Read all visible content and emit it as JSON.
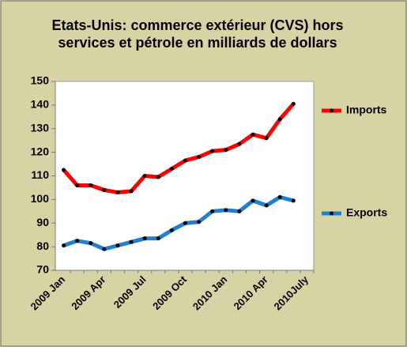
{
  "chart_data": {
    "type": "line",
    "title": [
      "Etats-Unis: commerce extérieur (CVS) hors",
      "services et pétrole en milliards de dollars"
    ],
    "categories": [
      "2009 Jan",
      null,
      null,
      "2009 Apr",
      null,
      null,
      "2009 Jul",
      null,
      null,
      "2009 Oct",
      null,
      null,
      "2010 Jan",
      null,
      null,
      "2010 Apr",
      null,
      null,
      "2010July"
    ],
    "series": [
      {
        "name": "Imports",
        "color": "#ff0000",
        "values": [
          112.5,
          106,
          106,
          104,
          103,
          103.5,
          110,
          109.5,
          113,
          116.5,
          118,
          120.5,
          121,
          123.5,
          127.5,
          126,
          134,
          140.5,
          null
        ]
      },
      {
        "name": "Exports",
        "color": "#1f7fd0",
        "values": [
          80.5,
          82.5,
          81.5,
          79,
          80.5,
          82,
          83.5,
          83.5,
          87,
          90,
          90.5,
          95,
          95.5,
          95,
          99.5,
          97.5,
          101,
          99.5,
          null
        ]
      }
    ],
    "ylim": [
      70,
      150
    ],
    "yticks": [
      70,
      80,
      90,
      100,
      110,
      120,
      130,
      140,
      150
    ],
    "grid": false
  }
}
